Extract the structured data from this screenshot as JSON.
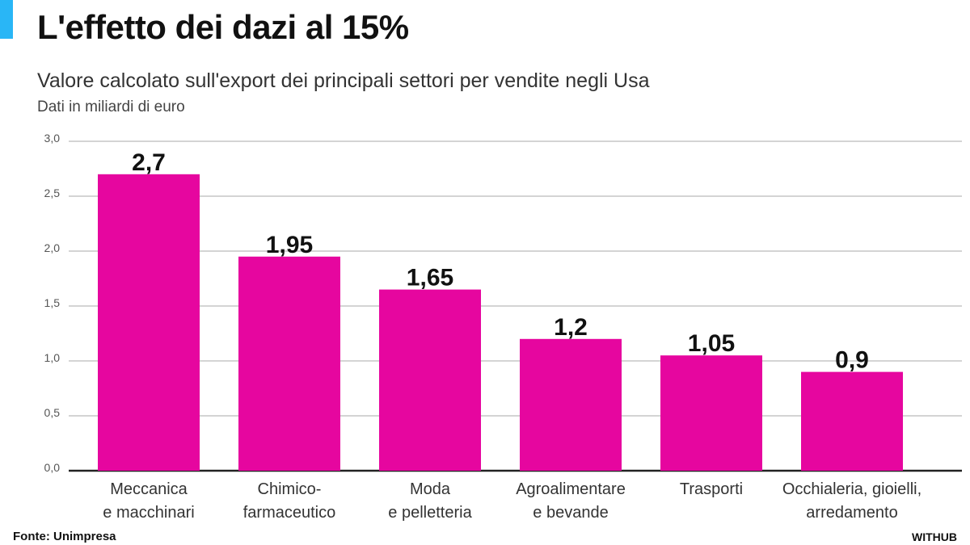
{
  "header": {
    "title": "L'effetto dei dazi al 15%",
    "subtitle": "Valore calcolato sull'export dei principali settori per vendite negli Usa",
    "unit_note": "Dati in miliardi di euro"
  },
  "footer": {
    "source": "Fonte: Unimpresa",
    "brand": "WITHUB"
  },
  "colors": {
    "accent": "#29b6f6",
    "bar": "#e6069f",
    "grid": "#bbbbbb",
    "axis": "#222222"
  },
  "chart_data": {
    "type": "bar",
    "categories": [
      "Meccanica\ne macchinari",
      "Chimico-\nfarmaceutico",
      "Moda\ne pelletteria",
      "Agroalimentare\ne bevande",
      "Trasporti",
      "Occhialeria, gioielli,\narredamento"
    ],
    "values": [
      2.7,
      1.95,
      1.65,
      1.2,
      1.05,
      0.9
    ],
    "value_labels": [
      "2,7",
      "1,95",
      "1,65",
      "1,2",
      "1,05",
      "0,9"
    ],
    "y_ticks": [
      0,
      0.5,
      1,
      1.5,
      2,
      2.5,
      3
    ],
    "y_tick_labels": [
      "0,0",
      "0,5",
      "1,0",
      "1,5",
      "2,0",
      "2,5",
      "3,0"
    ],
    "ylim": [
      0,
      3
    ],
    "grid": true,
    "title": "L'effetto dei dazi al 15%",
    "xlabel": "",
    "ylabel": ""
  }
}
